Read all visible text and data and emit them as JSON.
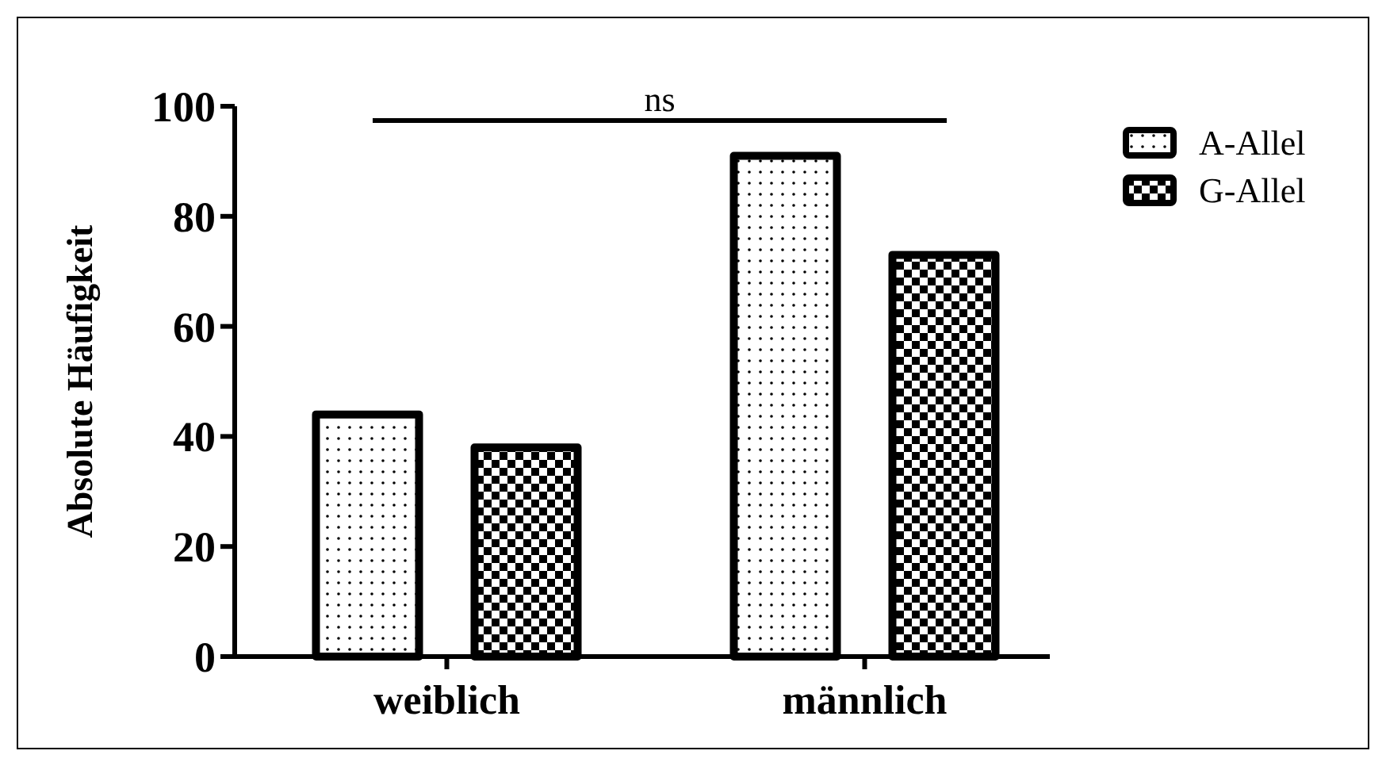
{
  "chart_data": {
    "type": "bar",
    "ylabel": "Absolute Häufigkeit",
    "categories": [
      "weiblich",
      "männlich"
    ],
    "series": [
      {
        "name": "A-Allel",
        "color": "#000000",
        "values": [
          44,
          91
        ]
      },
      {
        "name": "G-Allel",
        "color": "#000000",
        "values": [
          38,
          73
        ]
      }
    ],
    "ylim": [
      0,
      100
    ],
    "yticks": [
      0,
      20,
      40,
      60,
      80,
      100
    ],
    "grid": false,
    "legend": "top right",
    "annotations": [
      "ns"
    ]
  }
}
